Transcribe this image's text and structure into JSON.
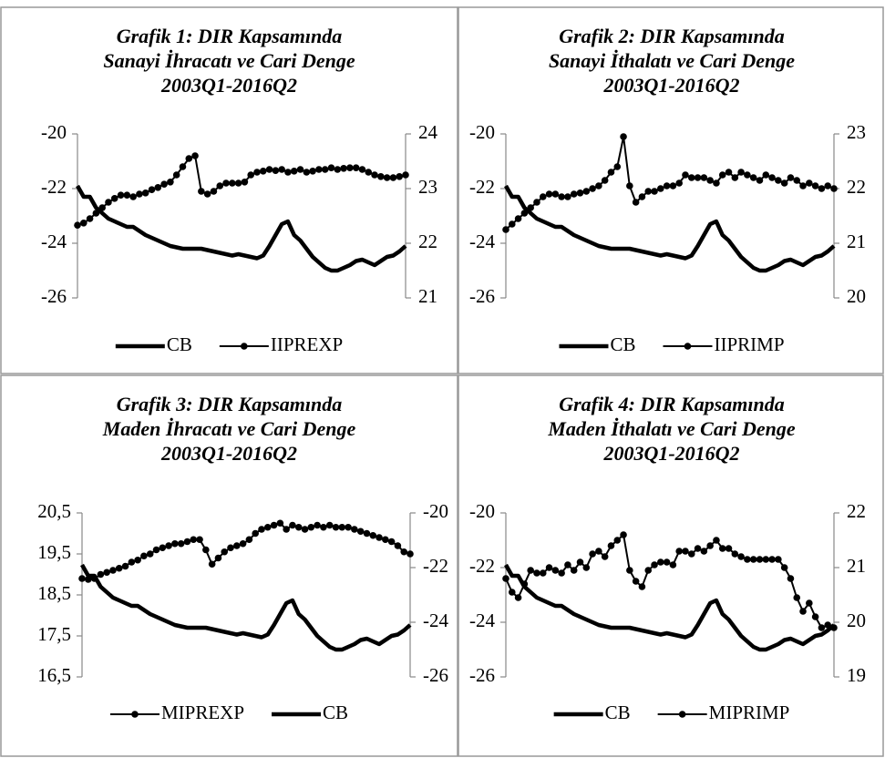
{
  "chart_data": [
    {
      "type": "line",
      "title": [
        "Grafik 1: DIR Kapsamında",
        "Sanayi İhracatı ve Cari Denge",
        "2003Q1-2016Q2"
      ],
      "ylim": [
        -26,
        -20
      ],
      "yticks": [
        -26,
        -24,
        -22,
        -20
      ],
      "y2lim": [
        21,
        24
      ],
      "y2ticks": [
        21,
        22,
        23,
        24
      ],
      "series": [
        {
          "name": "CB",
          "color": "#000000",
          "marker": false,
          "axis": "y",
          "values": [
            -21.9,
            -22.3,
            -22.3,
            -22.7,
            -22.9,
            -23.1,
            -23.2,
            -23.3,
            -23.4,
            -23.4,
            -23.55,
            -23.7,
            -23.8,
            -23.9,
            -24.0,
            -24.1,
            -24.15,
            -24.2,
            -24.2,
            -24.2,
            -24.2,
            -24.25,
            -24.3,
            -24.35,
            -24.4,
            -24.45,
            -24.4,
            -24.45,
            -24.5,
            -24.55,
            -24.45,
            -24.1,
            -23.7,
            -23.3,
            -23.2,
            -23.7,
            -23.9,
            -24.2,
            -24.5,
            -24.7,
            -24.9,
            -25.0,
            -25.0,
            -24.9,
            -24.8,
            -24.65,
            -24.6,
            -24.7,
            -24.8,
            -24.65,
            -24.5,
            -24.45,
            -24.3,
            -24.1
          ]
        },
        {
          "name": "IIPREXP",
          "color": "#000000",
          "marker": true,
          "axis": "y2",
          "values": [
            22.33,
            22.37,
            22.45,
            22.55,
            22.65,
            22.75,
            22.82,
            22.88,
            22.88,
            22.85,
            22.9,
            22.92,
            22.98,
            23.02,
            23.08,
            23.12,
            23.25,
            23.4,
            23.55,
            23.6,
            22.95,
            22.9,
            22.95,
            23.05,
            23.1,
            23.1,
            23.1,
            23.12,
            23.25,
            23.3,
            23.32,
            23.35,
            23.33,
            23.35,
            23.3,
            23.32,
            23.35,
            23.3,
            23.32,
            23.35,
            23.35,
            23.38,
            23.35,
            23.37,
            23.38,
            23.38,
            23.35,
            23.3,
            23.25,
            23.22,
            23.2,
            23.2,
            23.22,
            23.25
          ]
        }
      ]
    },
    {
      "type": "line",
      "title": [
        "Grafik 2: DIR Kapsamında",
        "Sanayi İthalatı ve Cari Denge",
        "2003Q1-2016Q2"
      ],
      "ylim": [
        -26,
        -20
      ],
      "yticks": [
        -26,
        -24,
        -22,
        -20
      ],
      "y2lim": [
        20,
        23
      ],
      "y2ticks": [
        20,
        21,
        22,
        23
      ],
      "series": [
        {
          "name": "CB",
          "color": "#000000",
          "marker": false,
          "axis": "y",
          "values": [
            -21.9,
            -22.3,
            -22.3,
            -22.7,
            -22.9,
            -23.1,
            -23.2,
            -23.3,
            -23.4,
            -23.4,
            -23.55,
            -23.7,
            -23.8,
            -23.9,
            -24.0,
            -24.1,
            -24.15,
            -24.2,
            -24.2,
            -24.2,
            -24.2,
            -24.25,
            -24.3,
            -24.35,
            -24.4,
            -24.45,
            -24.4,
            -24.45,
            -24.5,
            -24.55,
            -24.45,
            -24.1,
            -23.7,
            -23.3,
            -23.2,
            -23.7,
            -23.9,
            -24.2,
            -24.5,
            -24.7,
            -24.9,
            -25.0,
            -25.0,
            -24.9,
            -24.8,
            -24.65,
            -24.6,
            -24.7,
            -24.8,
            -24.65,
            -24.5,
            -24.45,
            -24.3,
            -24.1
          ]
        },
        {
          "name": "IIPRIMP",
          "color": "#000000",
          "marker": true,
          "axis": "y2",
          "values": [
            21.25,
            21.35,
            21.45,
            21.55,
            21.65,
            21.75,
            21.85,
            21.9,
            21.9,
            21.85,
            21.85,
            21.9,
            21.92,
            21.95,
            22.0,
            22.05,
            22.15,
            22.3,
            22.4,
            22.95,
            22.05,
            21.75,
            21.85,
            21.95,
            21.95,
            22.0,
            22.05,
            22.05,
            22.1,
            22.25,
            22.2,
            22.2,
            22.2,
            22.15,
            22.1,
            22.25,
            22.3,
            22.2,
            22.3,
            22.25,
            22.2,
            22.15,
            22.25,
            22.2,
            22.15,
            22.1,
            22.2,
            22.15,
            22.05,
            22.1,
            22.05,
            22.0,
            22.05,
            22.0
          ]
        }
      ]
    },
    {
      "type": "line",
      "title": [
        "Grafik 3: DIR Kapsamında",
        "Maden İhracatı ve Cari Denge",
        "2003Q1-2016Q2"
      ],
      "ylim": [
        16.5,
        20.5
      ],
      "yticks": [
        {
          "value": 16.5,
          "label": "16,5"
        },
        {
          "value": 17.5,
          "label": "17,5"
        },
        {
          "value": 18.5,
          "label": "18,5"
        },
        {
          "value": 19.5,
          "label": "19,5"
        },
        {
          "value": 20.5,
          "label": "20,5"
        }
      ],
      "y2lim": [
        -26,
        -20
      ],
      "y2ticks": [
        -26,
        -24,
        -22,
        -20
      ],
      "series": [
        {
          "name": "MIPREXP",
          "color": "#000000",
          "marker": true,
          "axis": "y",
          "values": [
            18.9,
            18.88,
            18.9,
            19.0,
            19.05,
            19.1,
            19.15,
            19.2,
            19.3,
            19.35,
            19.45,
            19.5,
            19.6,
            19.65,
            19.7,
            19.75,
            19.75,
            19.8,
            19.85,
            19.85,
            19.6,
            19.25,
            19.4,
            19.55,
            19.65,
            19.7,
            19.75,
            19.85,
            20.0,
            20.1,
            20.15,
            20.2,
            20.25,
            20.1,
            20.2,
            20.15,
            20.1,
            20.15,
            20.2,
            20.15,
            20.2,
            20.15,
            20.15,
            20.15,
            20.1,
            20.05,
            20.0,
            19.95,
            19.9,
            19.85,
            19.8,
            19.7,
            19.55,
            19.5
          ]
        },
        {
          "name": "CB",
          "color": "#000000",
          "marker": false,
          "axis": "y2",
          "values": [
            -21.9,
            -22.3,
            -22.3,
            -22.7,
            -22.9,
            -23.1,
            -23.2,
            -23.3,
            -23.4,
            -23.4,
            -23.55,
            -23.7,
            -23.8,
            -23.9,
            -24.0,
            -24.1,
            -24.15,
            -24.2,
            -24.2,
            -24.2,
            -24.2,
            -24.25,
            -24.3,
            -24.35,
            -24.4,
            -24.45,
            -24.4,
            -24.45,
            -24.5,
            -24.55,
            -24.45,
            -24.1,
            -23.7,
            -23.3,
            -23.2,
            -23.7,
            -23.9,
            -24.2,
            -24.5,
            -24.7,
            -24.9,
            -25.0,
            -25.0,
            -24.9,
            -24.8,
            -24.65,
            -24.6,
            -24.7,
            -24.8,
            -24.65,
            -24.5,
            -24.45,
            -24.3,
            -24.1
          ]
        }
      ]
    },
    {
      "type": "line",
      "title": [
        "Grafik 4: DIR Kapsamında",
        "Maden İthalatı ve Cari Denge",
        "2003Q1-2016Q2"
      ],
      "ylim": [
        -26,
        -20
      ],
      "yticks": [
        -26,
        -24,
        -22,
        -20
      ],
      "y2lim": [
        19,
        22
      ],
      "y2ticks": [
        19,
        20,
        21,
        22
      ],
      "series": [
        {
          "name": "CB",
          "color": "#000000",
          "marker": false,
          "axis": "y",
          "values": [
            -21.9,
            -22.3,
            -22.3,
            -22.7,
            -22.9,
            -23.1,
            -23.2,
            -23.3,
            -23.4,
            -23.4,
            -23.55,
            -23.7,
            -23.8,
            -23.9,
            -24.0,
            -24.1,
            -24.15,
            -24.2,
            -24.2,
            -24.2,
            -24.2,
            -24.25,
            -24.3,
            -24.35,
            -24.4,
            -24.45,
            -24.4,
            -24.45,
            -24.5,
            -24.55,
            -24.45,
            -24.1,
            -23.7,
            -23.3,
            -23.2,
            -23.7,
            -23.9,
            -24.2,
            -24.5,
            -24.7,
            -24.9,
            -25.0,
            -25.0,
            -24.9,
            -24.8,
            -24.65,
            -24.6,
            -24.7,
            -24.8,
            -24.65,
            -24.5,
            -24.45,
            -24.3,
            -24.1
          ]
        },
        {
          "name": "MIPRIMP",
          "color": "#000000",
          "marker": true,
          "axis": "y2",
          "values": [
            20.8,
            20.55,
            20.45,
            20.7,
            20.95,
            20.9,
            20.9,
            21.0,
            20.95,
            20.9,
            21.05,
            20.95,
            21.1,
            21.0,
            21.25,
            21.3,
            21.2,
            21.4,
            21.5,
            21.6,
            20.95,
            20.75,
            20.65,
            20.95,
            21.05,
            21.1,
            21.1,
            21.05,
            21.3,
            21.3,
            21.25,
            21.35,
            21.3,
            21.4,
            21.5,
            21.35,
            21.35,
            21.25,
            21.2,
            21.15,
            21.15,
            21.15,
            21.15,
            21.15,
            21.15,
            21.0,
            20.8,
            20.45,
            20.2,
            20.35,
            20.1,
            19.9,
            19.95,
            19.9
          ]
        }
      ]
    }
  ]
}
